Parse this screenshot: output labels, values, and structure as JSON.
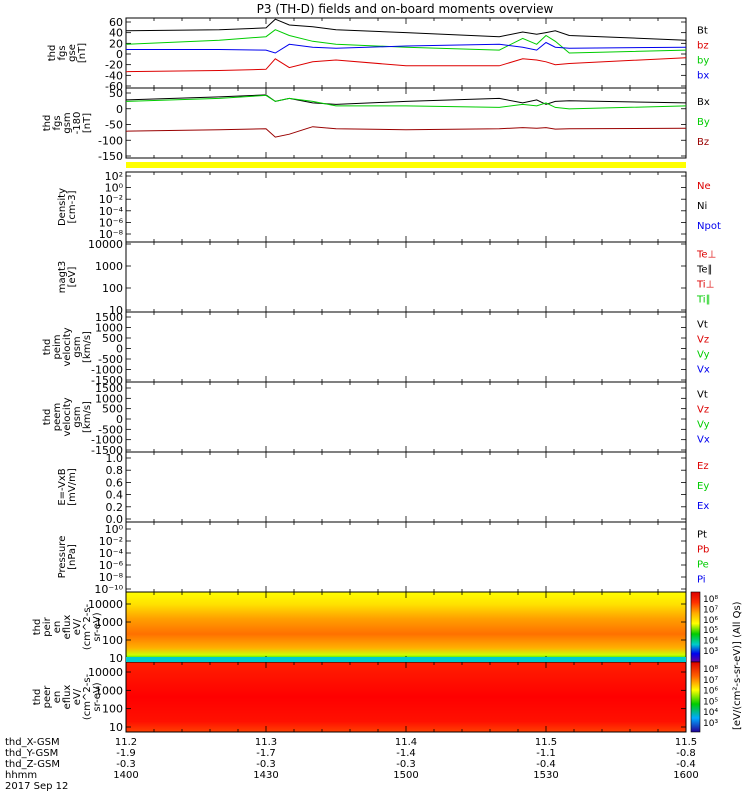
{
  "title": "P3 (TH-D) fields and on-board moments overview",
  "colors": {
    "black": "#000000",
    "red": "#dd0000",
    "green": "#00cc00",
    "blue": "#0000ee",
    "darkred": "#990000",
    "yellow": "#ffff00"
  },
  "panels": [
    {
      "id": "fgs-gse",
      "ylabel": [
        "thd",
        "fgs",
        "gse",
        "[nT]"
      ],
      "ticks": [
        "60",
        "40",
        "20",
        "0",
        "-20",
        "-40",
        "-60"
      ],
      "legend": [
        {
          "text": "Bt",
          "color": "#000000"
        },
        {
          "text": "bz",
          "color": "#dd0000"
        },
        {
          "text": "by",
          "color": "#00cc00"
        },
        {
          "text": "bx",
          "color": "#0000ee"
        }
      ]
    },
    {
      "id": "fgs-gsm",
      "ylabel": [
        "thd",
        "fgs",
        "gsm",
        "-180",
        "[nT]"
      ],
      "ticks": [
        "50",
        "0",
        "-50",
        "-100",
        "-150"
      ],
      "legend": [
        {
          "text": "Bx",
          "color": "#000000"
        },
        {
          "text": "By",
          "color": "#00cc00"
        },
        {
          "text": "Bz",
          "color": "#990000"
        }
      ]
    },
    {
      "id": "density",
      "ylabel": [
        "Density",
        "[cm-3]"
      ],
      "ticks": [
        "10²",
        "10⁰",
        "10⁻²",
        "10⁻⁴",
        "10⁻⁶",
        "10⁻⁸"
      ],
      "legend": [
        {
          "text": "Ne",
          "color": "#dd0000"
        },
        {
          "text": "Ni",
          "color": "#000000"
        },
        {
          "text": "Npot",
          "color": "#0000ee"
        }
      ]
    },
    {
      "id": "temperature",
      "ylabel": [
        "magt3",
        "[eV]"
      ],
      "ticks": [
        "10000",
        "1000",
        "100",
        "10"
      ],
      "legend": [
        {
          "text": "Te⊥",
          "color": "#dd0000"
        },
        {
          "text": "Te∥",
          "color": "#000000"
        },
        {
          "text": "Ti⊥",
          "color": "#dd0000"
        },
        {
          "text": "Ti∥",
          "color": "#00cc00"
        }
      ]
    },
    {
      "id": "peim-velocity",
      "ylabel": [
        "thd",
        "peim",
        "velocity",
        "gsm",
        "[km/s]"
      ],
      "ticks": [
        "1500",
        "1000",
        "500",
        "0",
        "-500",
        "-1000",
        "-1500"
      ],
      "legend": [
        {
          "text": "Vt",
          "color": "#000000"
        },
        {
          "text": "Vz",
          "color": "#dd0000"
        },
        {
          "text": "Vy",
          "color": "#00cc00"
        },
        {
          "text": "Vx",
          "color": "#0000ee"
        }
      ]
    },
    {
      "id": "peem-velocity",
      "ylabel": [
        "thd",
        "peem",
        "velocity",
        "gsm",
        "[km/s]"
      ],
      "ticks": [
        "1500",
        "1000",
        "500",
        "0",
        "-500",
        "-1000",
        "-1500"
      ],
      "legend": [
        {
          "text": "Vt",
          "color": "#000000"
        },
        {
          "text": "Vz",
          "color": "#dd0000"
        },
        {
          "text": "Vy",
          "color": "#00cc00"
        },
        {
          "text": "Vx",
          "color": "#0000ee"
        }
      ]
    },
    {
      "id": "efield",
      "ylabel": [
        "E=-VxB",
        "[mV/m]"
      ],
      "ticks": [
        "1.0",
        "0.8",
        "0.6",
        "0.4",
        "0.2",
        "0.0"
      ],
      "legend": [
        {
          "text": "Ez",
          "color": "#dd0000"
        },
        {
          "text": "Ey",
          "color": "#00cc00"
        },
        {
          "text": "Ex",
          "color": "#0000ee"
        }
      ]
    },
    {
      "id": "pressure",
      "ylabel": [
        "Pressure",
        "[nPa]"
      ],
      "ticks": [
        "10⁰",
        "10⁻²",
        "10⁻⁴",
        "10⁻⁶",
        "10⁻⁸",
        "10⁻¹⁰"
      ],
      "legend": [
        {
          "text": "Pt",
          "color": "#000000"
        },
        {
          "text": "Pb",
          "color": "#dd0000"
        },
        {
          "text": "Pe",
          "color": "#00cc00"
        },
        {
          "text": "Pi",
          "color": "#0000ee"
        }
      ]
    },
    {
      "id": "peir-eflux",
      "ylabel": [
        "thd",
        "peir",
        "en",
        "eflux",
        "eV/",
        "(cm^2-s-",
        "sr-eV)"
      ],
      "ticks": [
        "10000",
        "1000",
        "100",
        "10"
      ],
      "legend": []
    },
    {
      "id": "peer-eflux",
      "ylabel": [
        "thd",
        "peer",
        "en",
        "eflux",
        "eV/",
        "(cm^2-s-",
        "sr-eV)"
      ],
      "ticks": [
        "10000",
        "1000",
        "100",
        "10"
      ],
      "legend": []
    }
  ],
  "colorbar": {
    "ticks": [
      "10⁸",
      "10⁷",
      "10⁶",
      "10⁵",
      "10⁴",
      "10³"
    ],
    "label": "[eV/(cm²-s-sr-eV)] (All Qs)"
  },
  "xaxis": {
    "row_labels": [
      "thd_X-GSM",
      "thd_Y-GSM",
      "thd_Z-GSM",
      "hhmm",
      "2017 Sep 12"
    ],
    "columns": [
      [
        "11.2",
        "-1.9",
        "-0.3",
        "1400"
      ],
      [
        "11.3",
        "-1.7",
        "-0.3",
        "1430"
      ],
      [
        "11.4",
        "-1.4",
        "-0.3",
        "1500"
      ],
      [
        "11.5",
        "-1.1",
        "-0.4",
        "1530"
      ],
      [
        "11.5",
        "-0.8",
        "-0.4",
        "1600"
      ]
    ]
  },
  "chart_data": [
    {
      "type": "line",
      "panel": "fgs-gse",
      "xlabel": "hhmm",
      "ylabel": "thd fgs gse [nT]",
      "ylim": [
        -60,
        60
      ],
      "x": [
        "1400",
        "1420",
        "1430",
        "1432",
        "1435",
        "1440",
        "1445",
        "1500",
        "1520",
        "1525",
        "1528",
        "1530",
        "1532",
        "1535",
        "1600"
      ],
      "series": [
        {
          "name": "Bt",
          "values": [
            38,
            40,
            43,
            58,
            48,
            45,
            40,
            35,
            28,
            36,
            32,
            35,
            38,
            30,
            22
          ]
        },
        {
          "name": "bz",
          "values": [
            -32,
            -30,
            -28,
            -10,
            -25,
            -15,
            -12,
            -22,
            -22,
            -10,
            -12,
            -15,
            -20,
            -18,
            -8
          ]
        },
        {
          "name": "by",
          "values": [
            15,
            22,
            28,
            40,
            30,
            20,
            15,
            10,
            5,
            25,
            15,
            30,
            20,
            0,
            5
          ]
        },
        {
          "name": "bx",
          "values": [
            6,
            6,
            5,
            0,
            15,
            10,
            8,
            12,
            15,
            10,
            5,
            18,
            10,
            8,
            10
          ]
        }
      ]
    },
    {
      "type": "line",
      "panel": "fgs-gsm",
      "xlabel": "hhmm",
      "ylabel": "thd fgs gsm -180 [nT]",
      "ylim": [
        -180,
        55
      ],
      "x": [
        "1400",
        "1420",
        "1430",
        "1432",
        "1435",
        "1440",
        "1445",
        "1500",
        "1520",
        "1525",
        "1528",
        "1530",
        "1532",
        "1535",
        "1600"
      ],
      "series": [
        {
          "name": "Bx",
          "values": [
            15,
            25,
            32,
            10,
            20,
            5,
            0,
            10,
            20,
            5,
            15,
            0,
            10,
            12,
            5
          ]
        },
        {
          "name": "By",
          "values": [
            10,
            20,
            30,
            10,
            20,
            10,
            -5,
            -5,
            -10,
            0,
            -5,
            5,
            -10,
            -15,
            -5
          ]
        },
        {
          "name": "Bz",
          "values": [
            -90,
            -85,
            -82,
            -110,
            -100,
            -75,
            -82,
            -85,
            -82,
            -78,
            -80,
            -78,
            -83,
            -82,
            -80
          ]
        }
      ]
    }
  ]
}
